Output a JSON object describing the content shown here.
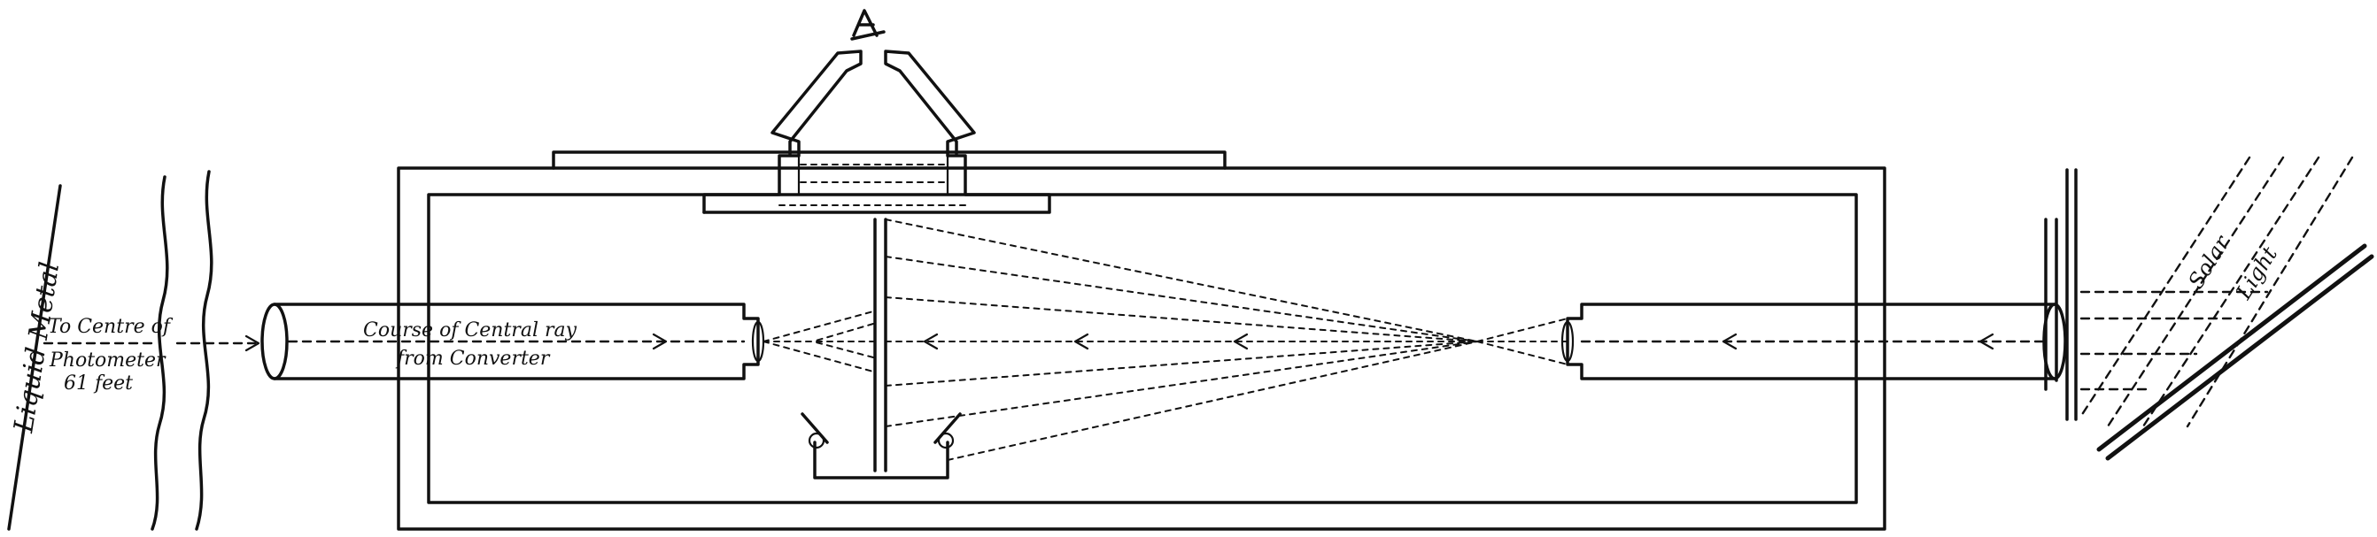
{
  "labels": {
    "liquid_metal": "Liquid Metal",
    "to_centre_line1": "To Centre of",
    "to_centre_line2": "Photometer",
    "to_centre_line3": "61 feet",
    "central_ray_line1": "Course of Central ray",
    "central_ray_line2": "from Converter",
    "solar_light_word1": "Solar",
    "solar_light_word2": "Light",
    "eyepiece_mark": "A"
  },
  "colors": {
    "ink": "#111111",
    "paper": "#ffffff"
  }
}
